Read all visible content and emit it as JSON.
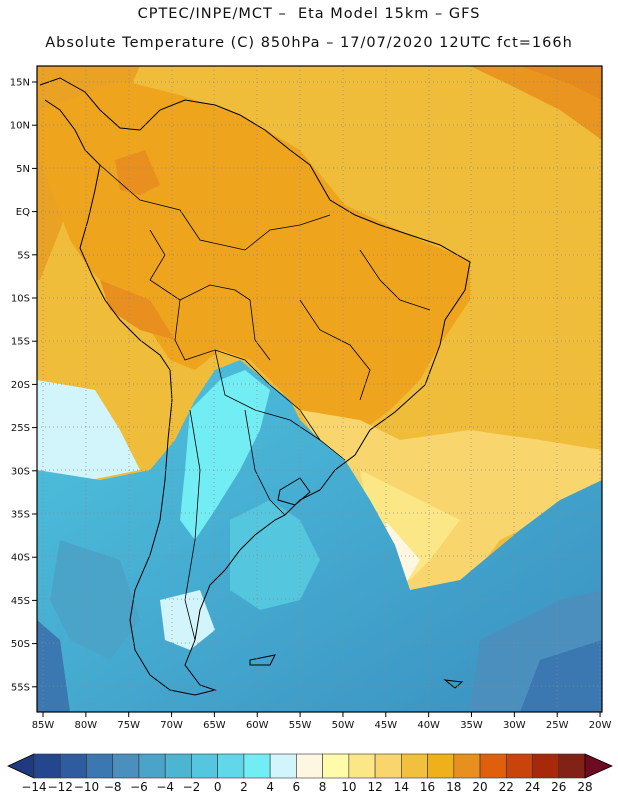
{
  "title_line1": "CPTEC/INPE/MCT –  Eta Model 15km – GFS",
  "title_line2": "Absolute Temperature (C) 850hPa – 17/07/2020 12UTC fct=166h",
  "lat_labels": [
    "15N",
    "10N",
    "5N",
    "EQ",
    "5S",
    "10S",
    "15S",
    "20S",
    "25S",
    "30S",
    "35S",
    "40S",
    "45S",
    "50S",
    "55S"
  ],
  "lon_labels": [
    "85W",
    "80W",
    "75W",
    "70W",
    "65W",
    "60W",
    "55W",
    "50W",
    "45W",
    "40W",
    "35W",
    "30W",
    "25W",
    "20W"
  ],
  "colorbar": {
    "labels": [
      "-14",
      "-12",
      "-10",
      "-8",
      "-6",
      "-4",
      "-2",
      "0",
      "2",
      "4",
      "6",
      "8",
      "10",
      "12",
      "14",
      "16",
      "18",
      "20",
      "22",
      "24",
      "26",
      "28"
    ],
    "colors": [
      "#24468f",
      "#2e5c9e",
      "#3b77b0",
      "#4a8fbe",
      "#4aa3c9",
      "#4cb5d2",
      "#54c6de",
      "#61d8e9",
      "#72edf4",
      "#d2f4fb",
      "#fdf6e0",
      "#fefbaa",
      "#fbe786",
      "#f8d66d",
      "#f2c03e",
      "#efb01c",
      "#e88f1f",
      "#df5f0d",
      "#c9430c",
      "#a8290a",
      "#822216"
    ],
    "under_color": "#1f3a7e",
    "over_color": "#6e0a22"
  },
  "colors": {
    "ocean_warm": "#f0bd3a",
    "land_warm": "#efa41e",
    "cold_air": "#4cc8e0",
    "coast": "#000000"
  }
}
